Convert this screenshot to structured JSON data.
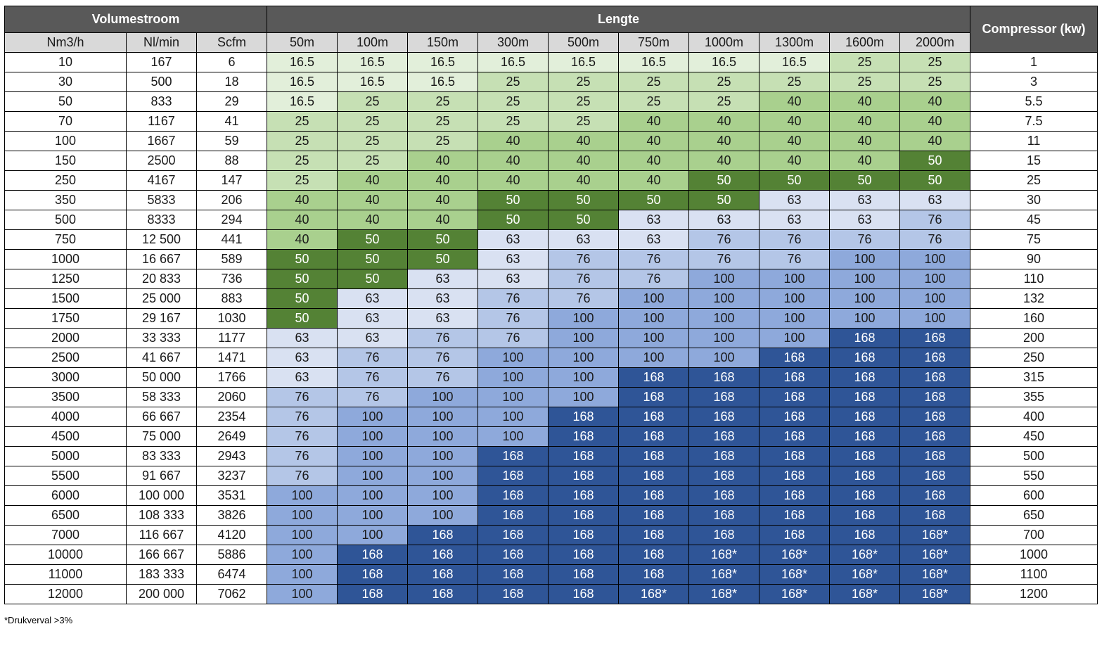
{
  "header": {
    "volumestroom": "Volumestroom",
    "lengte": "Lengte",
    "compressor": "Compressor (kw)",
    "flow_units": [
      "Nm3/h",
      "Nl/min",
      "Scfm"
    ],
    "lengths": [
      "50m",
      "100m",
      "150m",
      "300m",
      "500m",
      "750m",
      "1000m",
      "1300m",
      "1600m",
      "2000m"
    ]
  },
  "colors": {
    "header_bg": "#595959",
    "subheader_bg": "#d9d9d9",
    "16.5": "#e2efda",
    "25": "#c6e0b4",
    "40": "#a9d08e",
    "50": "#548235",
    "63": "#d9e1f2",
    "76": "#b4c6e7",
    "100": "#8ea9db",
    "168": "#2f5597",
    "168*": "#2f5597"
  },
  "rows": [
    {
      "nm3h": "10",
      "nlmin": "167",
      "scfm": "6",
      "values": [
        "16.5",
        "16.5",
        "16.5",
        "16.5",
        "16.5",
        "16.5",
        "16.5",
        "16.5",
        "25",
        "25"
      ],
      "kw": "1"
    },
    {
      "nm3h": "30",
      "nlmin": "500",
      "scfm": "18",
      "values": [
        "16.5",
        "16.5",
        "16.5",
        "25",
        "25",
        "25",
        "25",
        "25",
        "25",
        "25"
      ],
      "kw": "3"
    },
    {
      "nm3h": "50",
      "nlmin": "833",
      "scfm": "29",
      "values": [
        "16.5",
        "25",
        "25",
        "25",
        "25",
        "25",
        "25",
        "40",
        "40",
        "40"
      ],
      "kw": "5.5"
    },
    {
      "nm3h": "70",
      "nlmin": "1167",
      "scfm": "41",
      "values": [
        "25",
        "25",
        "25",
        "25",
        "25",
        "40",
        "40",
        "40",
        "40",
        "40"
      ],
      "kw": "7.5"
    },
    {
      "nm3h": "100",
      "nlmin": "1667",
      "scfm": "59",
      "values": [
        "25",
        "25",
        "25",
        "40",
        "40",
        "40",
        "40",
        "40",
        "40",
        "40"
      ],
      "kw": "11"
    },
    {
      "nm3h": "150",
      "nlmin": "2500",
      "scfm": "88",
      "values": [
        "25",
        "25",
        "40",
        "40",
        "40",
        "40",
        "40",
        "40",
        "40",
        "50"
      ],
      "kw": "15"
    },
    {
      "nm3h": "250",
      "nlmin": "4167",
      "scfm": "147",
      "values": [
        "25",
        "40",
        "40",
        "40",
        "40",
        "40",
        "50",
        "50",
        "50",
        "50"
      ],
      "kw": "25"
    },
    {
      "nm3h": "350",
      "nlmin": "5833",
      "scfm": "206",
      "values": [
        "40",
        "40",
        "40",
        "50",
        "50",
        "50",
        "50",
        "63",
        "63",
        "63"
      ],
      "kw": "30"
    },
    {
      "nm3h": "500",
      "nlmin": "8333",
      "scfm": "294",
      "values": [
        "40",
        "40",
        "40",
        "50",
        "50",
        "63",
        "63",
        "63",
        "63",
        "76"
      ],
      "kw": "45"
    },
    {
      "nm3h": "750",
      "nlmin": "12 500",
      "scfm": "441",
      "values": [
        "40",
        "50",
        "50",
        "63",
        "63",
        "63",
        "76",
        "76",
        "76",
        "76"
      ],
      "kw": "75"
    },
    {
      "nm3h": "1000",
      "nlmin": "16 667",
      "scfm": "589",
      "values": [
        "50",
        "50",
        "50",
        "63",
        "76",
        "76",
        "76",
        "76",
        "100",
        "100"
      ],
      "kw": "90"
    },
    {
      "nm3h": "1250",
      "nlmin": "20 833",
      "scfm": "736",
      "values": [
        "50",
        "50",
        "63",
        "63",
        "76",
        "76",
        "100",
        "100",
        "100",
        "100"
      ],
      "kw": "110"
    },
    {
      "nm3h": "1500",
      "nlmin": "25 000",
      "scfm": "883",
      "values": [
        "50",
        "63",
        "63",
        "76",
        "76",
        "100",
        "100",
        "100",
        "100",
        "100"
      ],
      "kw": "132"
    },
    {
      "nm3h": "1750",
      "nlmin": "29 167",
      "scfm": "1030",
      "values": [
        "50",
        "63",
        "63",
        "76",
        "100",
        "100",
        "100",
        "100",
        "100",
        "100"
      ],
      "kw": "160"
    },
    {
      "nm3h": "2000",
      "nlmin": "33 333",
      "scfm": "1177",
      "values": [
        "63",
        "63",
        "76",
        "76",
        "100",
        "100",
        "100",
        "100",
        "168",
        "168"
      ],
      "kw": "200"
    },
    {
      "nm3h": "2500",
      "nlmin": "41 667",
      "scfm": "1471",
      "values": [
        "63",
        "76",
        "76",
        "100",
        "100",
        "100",
        "100",
        "168",
        "168",
        "168"
      ],
      "kw": "250"
    },
    {
      "nm3h": "3000",
      "nlmin": "50 000",
      "scfm": "1766",
      "values": [
        "63",
        "76",
        "76",
        "100",
        "100",
        "168",
        "168",
        "168",
        "168",
        "168"
      ],
      "kw": "315"
    },
    {
      "nm3h": "3500",
      "nlmin": "58 333",
      "scfm": "2060",
      "values": [
        "76",
        "76",
        "100",
        "100",
        "100",
        "168",
        "168",
        "168",
        "168",
        "168"
      ],
      "kw": "355"
    },
    {
      "nm3h": "4000",
      "nlmin": "66 667",
      "scfm": "2354",
      "values": [
        "76",
        "100",
        "100",
        "100",
        "168",
        "168",
        "168",
        "168",
        "168",
        "168"
      ],
      "kw": "400"
    },
    {
      "nm3h": "4500",
      "nlmin": "75 000",
      "scfm": "2649",
      "values": [
        "76",
        "100",
        "100",
        "100",
        "168",
        "168",
        "168",
        "168",
        "168",
        "168"
      ],
      "kw": "450"
    },
    {
      "nm3h": "5000",
      "nlmin": "83 333",
      "scfm": "2943",
      "values": [
        "76",
        "100",
        "100",
        "168",
        "168",
        "168",
        "168",
        "168",
        "168",
        "168"
      ],
      "kw": "500"
    },
    {
      "nm3h": "5500",
      "nlmin": "91 667",
      "scfm": "3237",
      "values": [
        "76",
        "100",
        "100",
        "168",
        "168",
        "168",
        "168",
        "168",
        "168",
        "168"
      ],
      "kw": "550"
    },
    {
      "nm3h": "6000",
      "nlmin": "100 000",
      "scfm": "3531",
      "values": [
        "100",
        "100",
        "100",
        "168",
        "168",
        "168",
        "168",
        "168",
        "168",
        "168"
      ],
      "kw": "600"
    },
    {
      "nm3h": "6500",
      "nlmin": "108 333",
      "scfm": "3826",
      "values": [
        "100",
        "100",
        "100",
        "168",
        "168",
        "168",
        "168",
        "168",
        "168",
        "168"
      ],
      "kw": "650"
    },
    {
      "nm3h": "7000",
      "nlmin": "116 667",
      "scfm": "4120",
      "values": [
        "100",
        "100",
        "168",
        "168",
        "168",
        "168",
        "168",
        "168",
        "168",
        "168*"
      ],
      "kw": "700"
    },
    {
      "nm3h": "10000",
      "nlmin": "166 667",
      "scfm": "5886",
      "values": [
        "100",
        "168",
        "168",
        "168",
        "168",
        "168",
        "168*",
        "168*",
        "168*",
        "168*"
      ],
      "kw": "1000"
    },
    {
      "nm3h": "11000",
      "nlmin": "183 333",
      "scfm": "6474",
      "values": [
        "100",
        "168",
        "168",
        "168",
        "168",
        "168",
        "168*",
        "168*",
        "168*",
        "168*"
      ],
      "kw": "1100"
    },
    {
      "nm3h": "12000",
      "nlmin": "200 000",
      "scfm": "7062",
      "values": [
        "100",
        "168",
        "168",
        "168",
        "168",
        "168*",
        "168*",
        "168*",
        "168*",
        "168*"
      ],
      "kw": "1200"
    }
  ],
  "footnote": "*Drukverval >3%"
}
